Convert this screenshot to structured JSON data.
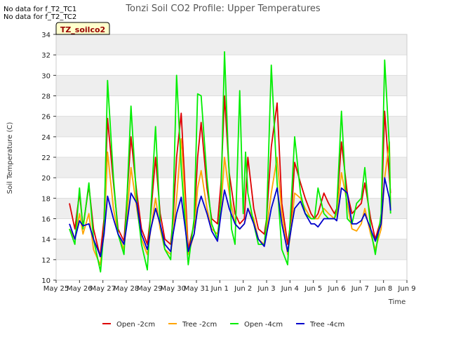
{
  "notes": [
    "No data for f_T2_TC1",
    "No data for f_T2_TC2"
  ],
  "badge": "TZ_soilco2",
  "chart_data": {
    "type": "line",
    "title": "Tonzi Soil CO2 Profile: Upper Temperatures",
    "xlabel": "Time",
    "ylabel": "Soil Temperature (C)",
    "ylim": [
      10,
      34
    ],
    "yticks": [
      10,
      12,
      14,
      16,
      18,
      20,
      22,
      24,
      26,
      28,
      30,
      32,
      34
    ],
    "xlim": [
      0,
      15
    ],
    "xtick_labels": [
      "May 25",
      "May 26",
      "May 27",
      "May 28",
      "May 29",
      "May 30",
      "May 31",
      "Jun 1",
      "Jun 2",
      "Jun 3",
      "Jun 4",
      "Jun 5",
      "Jun 6",
      "Jun 7",
      "Jun 8",
      "Jun 9"
    ],
    "grid": "horizontal bands",
    "legend_position": "bottom",
    "x_unit": "days since May 25",
    "series": [
      {
        "name": "Open -2cm",
        "color": "#dd0000",
        "x": [
          0.57,
          0.8,
          1.0,
          1.15,
          1.4,
          1.6,
          1.88,
          2.05,
          2.2,
          2.45,
          2.65,
          2.9,
          3.0,
          3.2,
          3.45,
          3.65,
          3.9,
          4.05,
          4.25,
          4.45,
          4.65,
          4.9,
          5.0,
          5.15,
          5.35,
          5.65,
          5.9,
          6.05,
          6.2,
          6.45,
          6.65,
          6.9,
          7.05,
          7.2,
          7.4,
          7.65,
          7.85,
          8.05,
          8.2,
          8.45,
          8.65,
          8.9,
          9.0,
          9.2,
          9.45,
          9.65,
          9.9,
          10.05,
          10.2,
          10.45,
          10.65,
          10.9,
          11.05,
          11.2,
          11.45,
          11.65,
          11.9,
          12.0,
          12.2,
          12.45,
          12.65,
          12.85,
          13.05,
          13.2,
          13.45,
          13.65,
          13.9,
          14.05,
          14.25,
          14.3
        ],
        "y": [
          17.5,
          15.0,
          18.5,
          15.2,
          19.2,
          15.0,
          12.3,
          16.0,
          25.8,
          19.5,
          15.0,
          13.8,
          17.0,
          24.0,
          18.5,
          15.0,
          13.5,
          16.5,
          22.0,
          16.5,
          14.0,
          13.5,
          16.0,
          22.0,
          26.3,
          13.0,
          15.5,
          22.0,
          25.4,
          19.0,
          16.0,
          15.5,
          19.5,
          28.0,
          20.5,
          16.5,
          15.5,
          16.0,
          22.0,
          17.0,
          15.0,
          14.5,
          16.0,
          23.0,
          27.3,
          17.5,
          13.5,
          16.0,
          21.5,
          19.5,
          18.0,
          16.5,
          16.0,
          16.5,
          18.5,
          17.5,
          16.5,
          17.0,
          23.5,
          18.5,
          16.5,
          17.0,
          17.5,
          19.5,
          16.0,
          14.0,
          16.0,
          26.5,
          20.0,
          18.5
        ]
      },
      {
        "name": "Tree -2cm",
        "color": "#ffa500",
        "x": [
          0.57,
          0.8,
          1.0,
          1.15,
          1.4,
          1.6,
          1.88,
          2.05,
          2.2,
          2.45,
          2.65,
          2.9,
          3.0,
          3.2,
          3.45,
          3.65,
          3.9,
          4.05,
          4.25,
          4.45,
          4.65,
          4.9,
          5.0,
          5.15,
          5.35,
          5.65,
          5.9,
          6.05,
          6.2,
          6.45,
          6.65,
          6.9,
          7.05,
          7.2,
          7.4,
          7.65,
          7.85,
          8.05,
          8.2,
          8.45,
          8.65,
          8.9,
          9.0,
          9.2,
          9.45,
          9.65,
          9.9,
          10.05,
          10.2,
          10.45,
          10.65,
          10.9,
          11.05,
          11.2,
          11.45,
          11.65,
          11.9,
          12.0,
          12.2,
          12.45,
          12.65,
          12.85,
          13.05,
          13.2,
          13.45,
          13.65,
          13.9,
          14.05,
          14.25,
          14.3
        ],
        "y": [
          15.0,
          14.0,
          16.5,
          14.5,
          16.5,
          13.0,
          11.5,
          14.5,
          22.5,
          17.0,
          14.5,
          13.0,
          15.5,
          21.0,
          17.0,
          14.0,
          12.5,
          15.0,
          18.0,
          15.0,
          13.0,
          12.5,
          14.5,
          18.0,
          23.8,
          12.5,
          14.5,
          19.0,
          20.7,
          17.0,
          15.0,
          14.5,
          17.0,
          22.0,
          18.5,
          15.5,
          15.0,
          15.5,
          17.0,
          16.0,
          14.0,
          13.5,
          15.0,
          18.5,
          22.0,
          16.5,
          12.5,
          15.0,
          18.5,
          18.0,
          17.0,
          16.0,
          16.0,
          16.0,
          17.0,
          16.5,
          16.0,
          16.5,
          20.5,
          17.5,
          15.0,
          14.8,
          15.5,
          17.0,
          14.5,
          13.0,
          15.0,
          20.0,
          23.5,
          17.0
        ]
      },
      {
        "name": "Open -4cm",
        "color": "#00ee00",
        "x": [
          0.57,
          0.8,
          1.0,
          1.15,
          1.4,
          1.6,
          1.9,
          2.05,
          2.2,
          2.45,
          2.65,
          2.9,
          3.0,
          3.2,
          3.45,
          3.65,
          3.9,
          4.05,
          4.25,
          4.45,
          4.65,
          4.9,
          5.0,
          5.15,
          5.35,
          5.65,
          5.9,
          6.05,
          6.2,
          6.45,
          6.65,
          6.9,
          7.05,
          7.2,
          7.35,
          7.5,
          7.65,
          7.85,
          8.0,
          8.1,
          8.2,
          8.45,
          8.65,
          8.9,
          9.0,
          9.2,
          9.45,
          9.65,
          9.9,
          10.05,
          10.2,
          10.45,
          10.65,
          10.9,
          11.05,
          11.2,
          11.45,
          11.65,
          11.9,
          12.0,
          12.2,
          12.45,
          12.65,
          12.85,
          13.05,
          13.2,
          13.45,
          13.65,
          13.9,
          14.05,
          14.25,
          14.3
        ],
        "y": [
          15.0,
          13.5,
          19.0,
          15.0,
          19.5,
          14.0,
          10.8,
          15.0,
          29.5,
          20.0,
          14.5,
          12.5,
          16.5,
          27.0,
          17.5,
          13.5,
          11.0,
          17.0,
          25.0,
          15.5,
          13.0,
          12.0,
          17.0,
          30.0,
          21.0,
          11.5,
          16.0,
          28.2,
          28.0,
          20.0,
          15.5,
          14.0,
          18.0,
          32.3,
          23.0,
          15.0,
          13.5,
          28.5,
          16.5,
          22.5,
          18.5,
          15.5,
          13.5,
          13.5,
          16.0,
          31.0,
          19.5,
          13.0,
          11.5,
          17.5,
          24.0,
          18.5,
          16.5,
          16.0,
          16.0,
          19.0,
          16.5,
          16.0,
          16.0,
          17.0,
          26.5,
          16.0,
          15.5,
          17.5,
          18.0,
          21.0,
          15.0,
          12.5,
          16.5,
          31.5,
          23.0,
          16.5
        ]
      },
      {
        "name": "Tree -4cm",
        "color": "#0000cc",
        "x": [
          0.57,
          0.8,
          1.0,
          1.15,
          1.4,
          1.6,
          1.9,
          2.05,
          2.2,
          2.45,
          2.65,
          2.9,
          3.0,
          3.2,
          3.45,
          3.65,
          3.9,
          4.05,
          4.25,
          4.45,
          4.65,
          4.9,
          5.0,
          5.15,
          5.35,
          5.65,
          5.9,
          6.05,
          6.2,
          6.45,
          6.65,
          6.9,
          7.05,
          7.2,
          7.4,
          7.65,
          7.85,
          8.05,
          8.2,
          8.45,
          8.65,
          8.9,
          9.0,
          9.2,
          9.45,
          9.65,
          9.9,
          10.05,
          10.2,
          10.45,
          10.65,
          10.9,
          11.05,
          11.2,
          11.45,
          11.65,
          11.9,
          12.0,
          12.2,
          12.45,
          12.65,
          12.85,
          13.05,
          13.2,
          13.45,
          13.65,
          13.9,
          14.05,
          14.25,
          14.3
        ],
        "y": [
          15.5,
          14.0,
          15.8,
          15.3,
          15.5,
          14.0,
          12.3,
          14.5,
          18.2,
          16.0,
          14.5,
          13.5,
          15.0,
          18.5,
          17.5,
          14.5,
          13.0,
          15.0,
          17.0,
          15.5,
          13.5,
          12.8,
          14.5,
          16.5,
          18.1,
          12.8,
          14.5,
          17.0,
          18.2,
          16.5,
          14.8,
          13.8,
          16.5,
          18.8,
          17.0,
          15.5,
          15.0,
          15.5,
          17.0,
          15.5,
          14.0,
          13.3,
          14.5,
          17.0,
          19.0,
          15.5,
          12.8,
          15.0,
          17.0,
          17.7,
          16.5,
          15.5,
          15.5,
          15.2,
          16.0,
          16.0,
          16.0,
          15.8,
          19.0,
          18.5,
          15.5,
          15.5,
          15.8,
          16.5,
          15.0,
          13.8,
          15.5,
          20.0,
          18.0,
          16.8
        ]
      }
    ]
  }
}
